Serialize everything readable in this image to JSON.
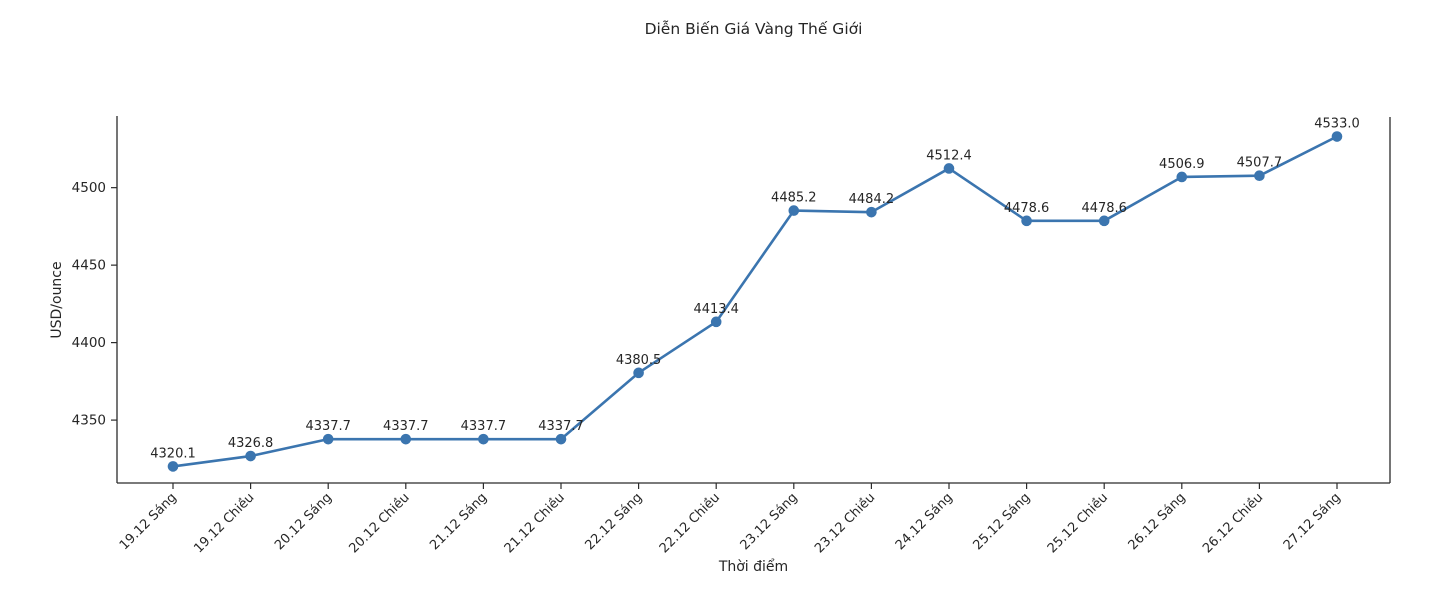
{
  "chart_data": {
    "type": "line",
    "title": "Diễn Biến Giá Vàng Thế Giới",
    "xlabel": "Thời điểm",
    "ylabel": "USD/ounce",
    "categories": [
      "19.12 Sáng",
      "19.12 Chiều",
      "20.12 Sáng",
      "20.12 Chiều",
      "21.12 Sáng",
      "21.12 Chiều",
      "22.12 Sáng",
      "22.12 Chiều",
      "23.12 Sáng",
      "23.12 Chiều",
      "24.12 Sáng",
      "25.12 Sáng",
      "25.12 Chiều",
      "26.12 Sáng",
      "26.12 Chiều",
      "27.12 Sáng"
    ],
    "values": [
      4320.1,
      4326.8,
      4337.7,
      4337.7,
      4337.7,
      4337.7,
      4380.5,
      4413.4,
      4485.2,
      4484.2,
      4512.4,
      4478.6,
      4478.6,
      4506.9,
      4507.7,
      4533.0
    ],
    "yticks": [
      4350,
      4400,
      4450,
      4500
    ],
    "ylim": [
      4309.4,
      4545.6
    ],
    "grid": false,
    "legend": "none",
    "data_labels": true,
    "label_decimals": 1,
    "line_color": "#3b75af",
    "marker": "circle",
    "axis_color": "#2b2b2b",
    "text_color": "#262626"
  }
}
